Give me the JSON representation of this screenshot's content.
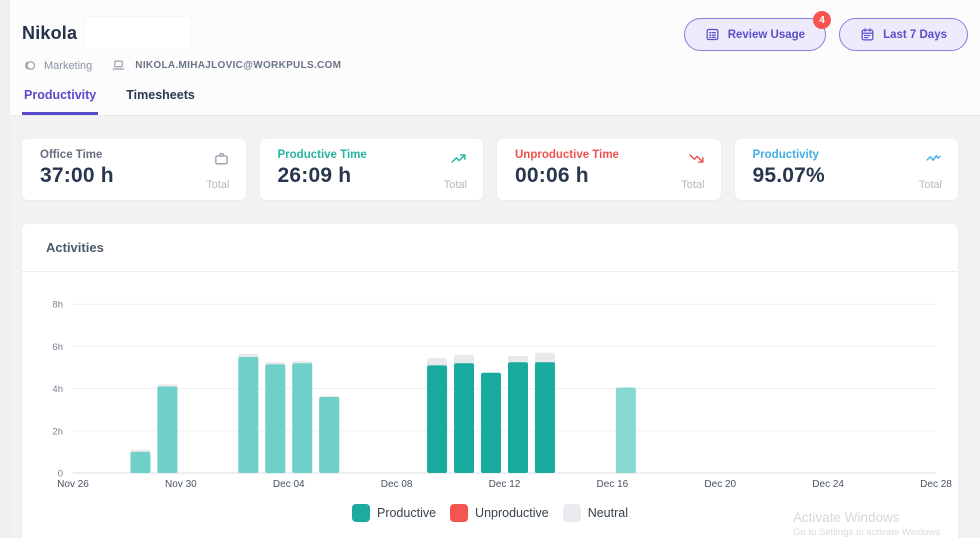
{
  "header": {
    "title": "Nikola",
    "team": "Marketing",
    "email": "NIKOLA.MIHAJLOVIC@WORKPULS.COM",
    "review_usage": {
      "label": "Review Usage",
      "badge": "4"
    },
    "date_range": {
      "label": "Last 7 Days"
    }
  },
  "tabs": [
    {
      "label": "Productivity",
      "active": true
    },
    {
      "label": "Timesheets",
      "active": false
    }
  ],
  "stats": [
    {
      "label": "Office Time",
      "value": "37:00 h",
      "footer": "Total",
      "icon": "briefcase-icon",
      "label_color": "#67707f",
      "icon_color": "#939ba8"
    },
    {
      "label": "Productive Time",
      "value": "26:09 h",
      "footer": "Total",
      "icon": "trending-up-icon",
      "label_color": "#27b3a2",
      "icon_color": "#27b3a2"
    },
    {
      "label": "Unproductive Time",
      "value": "00:06 h",
      "footer": "Total",
      "icon": "trending-down-icon",
      "label_color": "#f0504f",
      "icon_color": "#f0504f"
    },
    {
      "label": "Productivity",
      "value": "95.07%",
      "footer": "Total",
      "icon": "activity-icon",
      "label_color": "#41aee4",
      "icon_color": "#41aee4"
    }
  ],
  "activities": {
    "title": "Activities"
  },
  "chart_data": {
    "type": "bar",
    "stacked": true,
    "title": "Activities",
    "ylabel": "hours",
    "ylim": [
      0,
      8
    ],
    "grid": true,
    "legend_position": "bottom",
    "y_axis": {
      "ticks": [
        {
          "value": 0,
          "label": "0"
        },
        {
          "value": 2,
          "label": "2h"
        },
        {
          "value": 4,
          "label": "4h"
        },
        {
          "value": 6,
          "label": "6h"
        },
        {
          "value": 8,
          "label": "8h"
        }
      ]
    },
    "x_axis": {
      "total_slots": 32,
      "ticks": [
        {
          "slot": 0,
          "label": "Nov 26"
        },
        {
          "slot": 4,
          "label": "Nov 30"
        },
        {
          "slot": 8,
          "label": "Dec 04"
        },
        {
          "slot": 12,
          "label": "Dec 08"
        },
        {
          "slot": 16,
          "label": "Dec 12"
        },
        {
          "slot": 20,
          "label": "Dec 16"
        },
        {
          "slot": 24,
          "label": "Dec 20"
        },
        {
          "slot": 28,
          "label": "Dec 24"
        },
        {
          "slot": 32,
          "label": "Dec 28"
        }
      ]
    },
    "bars": [
      {
        "date": "Nov 28",
        "slot": 2,
        "productive": 1.0,
        "neutral": 0.1,
        "fill": "#6fd0c9"
      },
      {
        "date": "Nov 29",
        "slot": 3,
        "productive": 4.1,
        "neutral": 0.1,
        "fill": "#6fd0c9"
      },
      {
        "date": "Dec 02",
        "slot": 6,
        "productive": 5.5,
        "neutral": 0.15,
        "fill": "#6fd0c9"
      },
      {
        "date": "Dec 03",
        "slot": 7,
        "productive": 5.15,
        "neutral": 0.1,
        "fill": "#6fd0c9"
      },
      {
        "date": "Dec 04",
        "slot": 8,
        "productive": 5.2,
        "neutral": 0.1,
        "fill": "#6fd0c9"
      },
      {
        "date": "Dec 05",
        "slot": 9,
        "productive": 3.6,
        "neutral": 0.05,
        "fill": "#6fd0c9"
      },
      {
        "date": "Dec 09",
        "slot": 13,
        "productive": 5.1,
        "neutral": 0.35,
        "fill": "#18ab9d"
      },
      {
        "date": "Dec 10",
        "slot": 14,
        "productive": 5.2,
        "neutral": 0.4,
        "fill": "#18ab9d"
      },
      {
        "date": "Dec 11",
        "slot": 15,
        "productive": 4.75,
        "neutral": 0.0,
        "fill": "#18ab9d"
      },
      {
        "date": "Dec 12",
        "slot": 16,
        "productive": 5.25,
        "neutral": 0.3,
        "fill": "#18ab9d"
      },
      {
        "date": "Dec 13",
        "slot": 17,
        "productive": 5.25,
        "neutral": 0.45,
        "fill": "#18ab9d"
      },
      {
        "date": "Dec 16",
        "slot": 20,
        "productive": 4.05,
        "neutral": 0.0,
        "fill": "#87d8d1"
      }
    ],
    "colors": {
      "neutral": "#e7e9ec",
      "gridline": "#efeff3",
      "baseline": "#d9dce1",
      "y_tick_text": "#76808f",
      "x_tick_text": "#49535f"
    },
    "legend": [
      {
        "label": "Productive",
        "color": "#1cab9c"
      },
      {
        "label": "Unproductive",
        "color": "#f4564f"
      },
      {
        "label": "Neutral",
        "color": "#e9ebee"
      }
    ]
  },
  "watermark": {
    "line1": "Activate Windows",
    "line2": "Go to Settings to activate Windows"
  }
}
